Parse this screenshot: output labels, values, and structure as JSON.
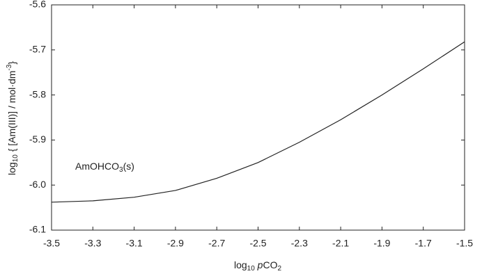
{
  "chart_data": {
    "type": "line",
    "xlabel": [
      "log",
      "10",
      " ",
      "p",
      "CO",
      "2"
    ],
    "ylabel": [
      "log",
      "10",
      " { [Am(III)] / mol·dm",
      "-3",
      "}"
    ],
    "annotation": [
      "AmOHCO",
      "3",
      "(s)"
    ],
    "x": [
      -3.5,
      -3.3,
      -3.1,
      -2.9,
      -2.7,
      -2.5,
      -2.3,
      -2.1,
      -1.9,
      -1.7,
      -1.5
    ],
    "series": [
      {
        "color": "#222222",
        "values": [
          -6.038,
          -6.035,
          -6.027,
          -6.012,
          -5.985,
          -5.95,
          -5.905,
          -5.855,
          -5.8,
          -5.742,
          -5.682
        ]
      }
    ],
    "xlim": [
      -3.5,
      -1.5
    ],
    "xticks": [
      -3.5,
      -3.3,
      -3.1,
      -2.9,
      -2.7,
      -2.5,
      -2.3,
      -2.1,
      -1.9,
      -1.7,
      -1.5
    ],
    "ylim": [
      -6.1,
      -5.6
    ],
    "yticks": [
      -6.1,
      {
        "value": -6,
        "label": "-6.0"
      },
      -5.9,
      -5.8,
      -5.7,
      -5.6
    ]
  }
}
